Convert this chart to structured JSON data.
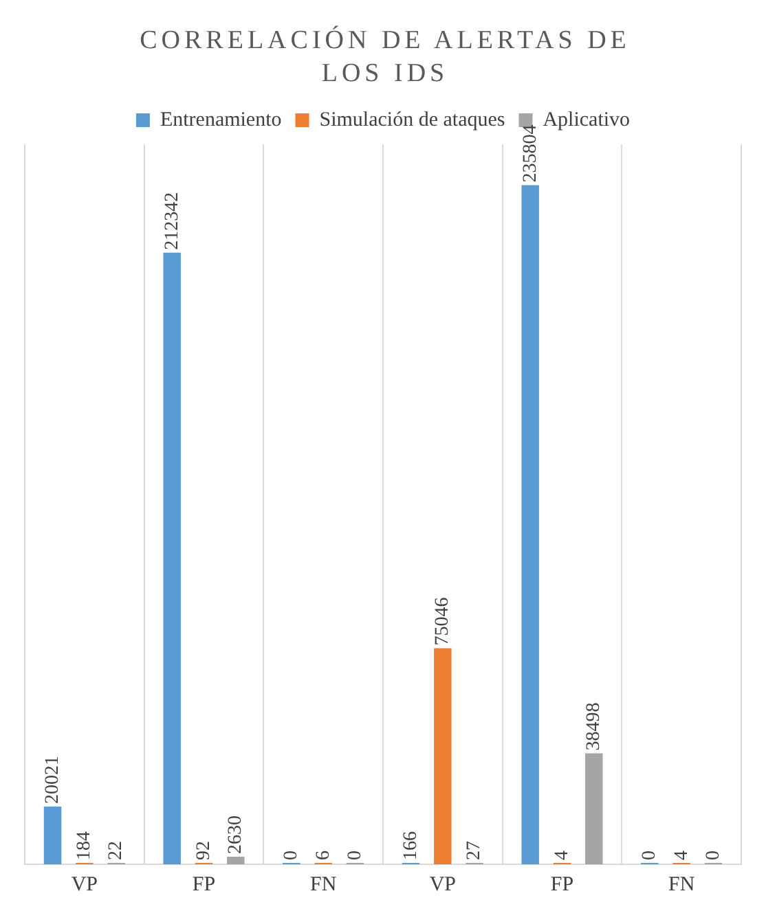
{
  "chart_data": {
    "type": "bar",
    "title": "CORRELACIÓN DE ALERTAS DE LOS IDS",
    "categories": [
      "VP",
      "FP",
      "FN",
      "VP",
      "FP",
      "FN"
    ],
    "series": [
      {
        "name": "Entrenamiento",
        "color": "#5b9bd5",
        "values": [
          20021,
          212342,
          0,
          166,
          235804,
          0
        ]
      },
      {
        "name": "Simulación de ataques",
        "color": "#ed7d31",
        "values": [
          184,
          92,
          6,
          75046,
          4,
          4
        ]
      },
      {
        "name": "Aplicativo",
        "color": "#a5a5a5",
        "values": [
          22,
          2630,
          0,
          27,
          38498,
          0
        ]
      }
    ],
    "data_labels": true,
    "grid": "x",
    "legend": "top",
    "tick_labels": "x"
  }
}
